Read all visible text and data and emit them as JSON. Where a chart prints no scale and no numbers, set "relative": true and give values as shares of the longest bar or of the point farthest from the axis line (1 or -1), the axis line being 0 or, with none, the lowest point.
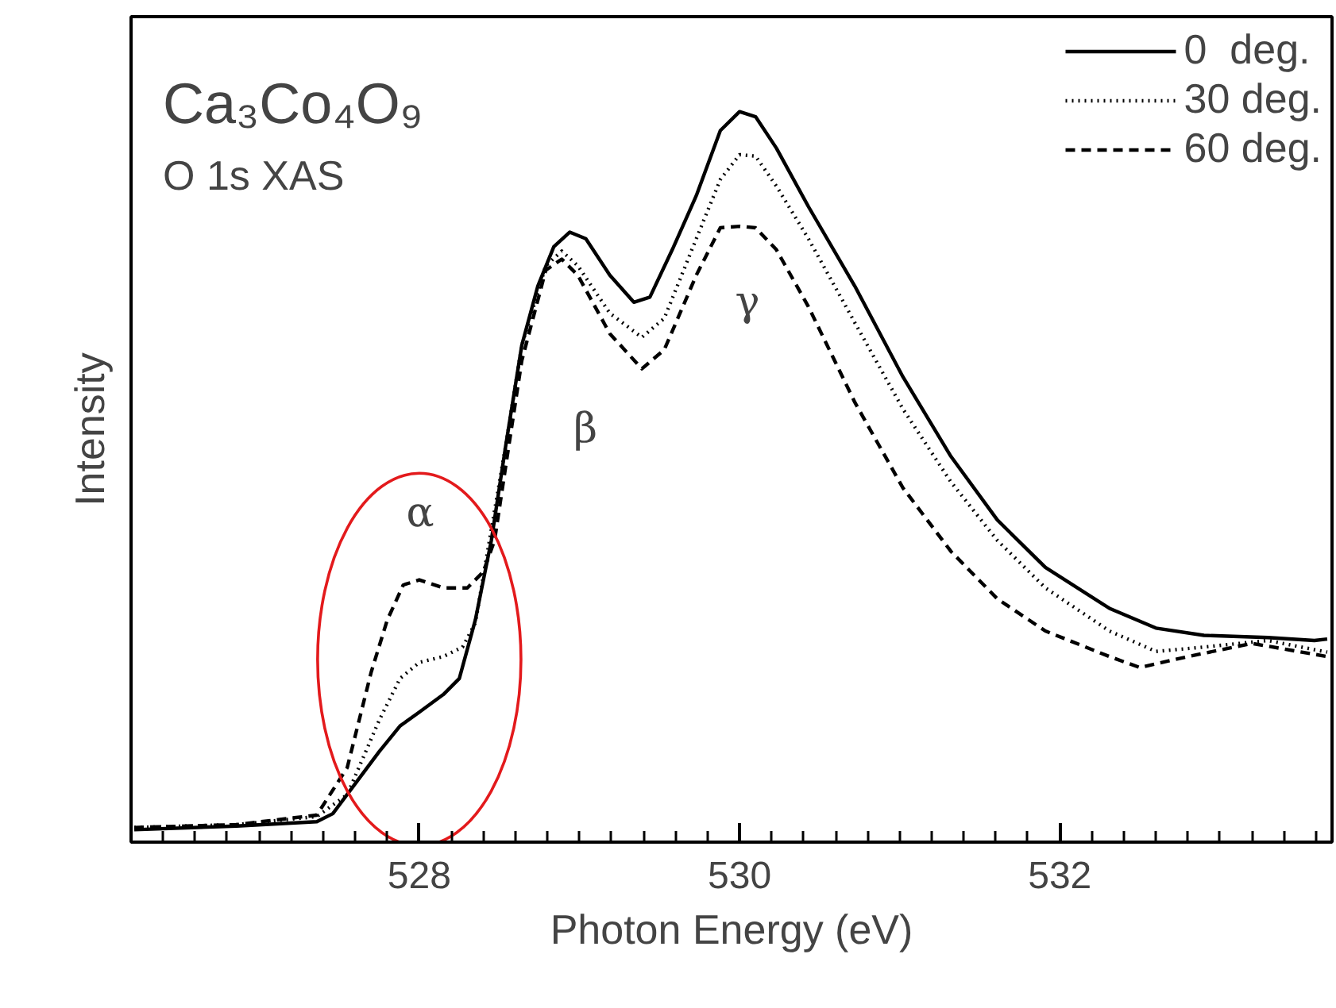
{
  "chart_data": {
    "type": "line",
    "title": "Ca₃Co₄O₉",
    "subtitle": "O 1s XAS",
    "xlabel": "Photon Energy (eV)",
    "ylabel": "Intensity",
    "relative": true,
    "xlim": [
      526.2,
      533.7
    ],
    "xticks": [
      {
        "value": 526.2,
        "label": null
      },
      {
        "value": 526.4,
        "label": null
      },
      {
        "value": 526.6,
        "label": null
      },
      {
        "value": 526.8,
        "label": null
      },
      {
        "value": 527.0,
        "label": null
      },
      {
        "value": 527.2,
        "label": null
      },
      {
        "value": 527.4,
        "label": null
      },
      {
        "value": 527.6,
        "label": null
      },
      {
        "value": 527.8,
        "label": null
      },
      528,
      {
        "value": 528.2,
        "label": null
      },
      {
        "value": 528.4,
        "label": null
      },
      {
        "value": 528.6,
        "label": null
      },
      {
        "value": 528.8,
        "label": null
      },
      {
        "value": 529.0,
        "label": null
      },
      {
        "value": 529.2,
        "label": null
      },
      {
        "value": 529.4,
        "label": null
      },
      {
        "value": 529.6,
        "label": null
      },
      {
        "value": 529.8,
        "label": null
      },
      530,
      {
        "value": 530.2,
        "label": null
      },
      {
        "value": 530.4,
        "label": null
      },
      {
        "value": 530.6,
        "label": null
      },
      {
        "value": 530.8,
        "label": null
      },
      {
        "value": 531.0,
        "label": null
      },
      {
        "value": 531.2,
        "label": null
      },
      {
        "value": 531.4,
        "label": null
      },
      {
        "value": 531.6,
        "label": null
      },
      {
        "value": 531.8,
        "label": null
      },
      532,
      {
        "value": 532.2,
        "label": null
      },
      {
        "value": 532.4,
        "label": null
      },
      {
        "value": 532.6,
        "label": null
      },
      {
        "value": 532.8,
        "label": null
      },
      {
        "value": 533.0,
        "label": null
      },
      {
        "value": 533.2,
        "label": null
      },
      {
        "value": 533.4,
        "label": null
      },
      {
        "value": 533.6,
        "label": null
      }
    ],
    "tick_labels": "x",
    "grid": false,
    "legend": "top right",
    "series": [
      {
        "name": "0  deg.",
        "color": "#000000",
        "line_style": "solid",
        "x": [
          526.22,
          526.86,
          527.36,
          527.46,
          527.6,
          527.75,
          527.88,
          528.0,
          528.15,
          528.25,
          528.35,
          528.45,
          528.54,
          528.64,
          528.74,
          528.84,
          528.94,
          529.04,
          529.19,
          529.34,
          529.44,
          529.58,
          529.73,
          529.88,
          530.0,
          530.1,
          530.23,
          530.43,
          530.72,
          531.02,
          531.32,
          531.61,
          531.91,
          532.31,
          532.6,
          532.9,
          533.3,
          533.59,
          533.67
        ],
        "values": [
          0.017,
          0.022,
          0.028,
          0.039,
          0.08,
          0.124,
          0.159,
          0.178,
          0.202,
          0.224,
          0.304,
          0.413,
          0.543,
          0.68,
          0.761,
          0.815,
          0.835,
          0.826,
          0.776,
          0.739,
          0.746,
          0.811,
          0.885,
          0.974,
          1.0,
          0.993,
          0.95,
          0.87,
          0.761,
          0.637,
          0.528,
          0.441,
          0.376,
          0.32,
          0.293,
          0.283,
          0.28,
          0.276,
          0.278
        ]
      },
      {
        "name": "30 deg.",
        "color": "#000000",
        "line_style": "dotted",
        "x": [
          526.22,
          526.86,
          527.36,
          527.55,
          527.75,
          527.88,
          528.0,
          528.15,
          528.27,
          528.35,
          528.45,
          528.54,
          528.64,
          528.79,
          528.89,
          528.99,
          529.19,
          529.39,
          529.53,
          529.73,
          529.88,
          530.0,
          530.1,
          530.23,
          530.43,
          530.72,
          531.02,
          531.32,
          531.61,
          531.91,
          532.31,
          532.6,
          532.9,
          533.3,
          533.67
        ],
        "values": [
          0.02,
          0.024,
          0.035,
          0.065,
          0.167,
          0.224,
          0.246,
          0.254,
          0.267,
          0.3,
          0.428,
          0.543,
          0.68,
          0.789,
          0.809,
          0.789,
          0.724,
          0.691,
          0.717,
          0.826,
          0.907,
          0.941,
          0.939,
          0.898,
          0.826,
          0.711,
          0.593,
          0.493,
          0.413,
          0.348,
          0.289,
          0.261,
          0.267,
          0.276,
          0.26
        ]
      },
      {
        "name": "60 deg.",
        "color": "#000000",
        "line_style": "dashed",
        "x": [
          526.22,
          526.86,
          527.36,
          527.55,
          527.7,
          527.8,
          527.9,
          528.0,
          528.15,
          528.3,
          528.4,
          528.47,
          528.54,
          528.64,
          528.79,
          528.89,
          528.99,
          529.19,
          529.39,
          529.53,
          529.73,
          529.88,
          530.0,
          530.1,
          530.23,
          530.43,
          530.72,
          531.02,
          531.32,
          531.61,
          531.91,
          532.31,
          532.5,
          532.8,
          533.2,
          533.67
        ],
        "values": [
          0.02,
          0.024,
          0.037,
          0.102,
          0.233,
          0.304,
          0.352,
          0.359,
          0.348,
          0.348,
          0.37,
          0.413,
          0.515,
          0.659,
          0.783,
          0.798,
          0.776,
          0.696,
          0.648,
          0.674,
          0.776,
          0.841,
          0.843,
          0.841,
          0.811,
          0.733,
          0.602,
          0.485,
          0.398,
          0.333,
          0.289,
          0.254,
          0.239,
          0.254,
          0.272,
          0.254
        ]
      }
    ],
    "annotations": [
      "α",
      "β",
      "γ"
    ]
  }
}
